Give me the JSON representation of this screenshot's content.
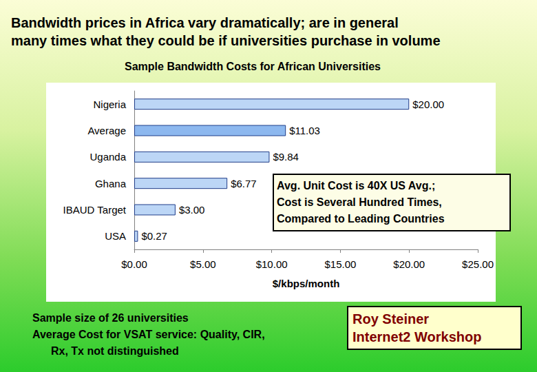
{
  "chart_data": {
    "type": "bar",
    "orientation": "horizontal",
    "title": "Sample Bandwidth Costs for African Universities",
    "x_label": "$/kbps/month",
    "categories": [
      "Nigeria",
      "Average",
      "Uganda",
      "Ghana",
      "IBAUD Target",
      "USA"
    ],
    "values": [
      20.0,
      11.03,
      9.84,
      6.77,
      3.0,
      0.27
    ],
    "value_labels": [
      "$20.00",
      "$11.03",
      "$9.84",
      "$6.77",
      "$3.00",
      "$0.27"
    ],
    "colors": [
      "#bcd6f6",
      "#8db8ef",
      "#bcd6f6",
      "#bcd6f6",
      "#bcd6f6",
      "#bcd6f6"
    ],
    "data_labels": true,
    "grid": false,
    "xlim": [
      0,
      25
    ],
    "xticks": [
      {
        "value": 0,
        "label": "$0.00"
      },
      {
        "value": 5,
        "label": "$5.00"
      },
      {
        "value": 10,
        "label": "$10.00"
      },
      {
        "value": 15,
        "label": "$15.00"
      },
      {
        "value": 20,
        "label": "$20.00"
      },
      {
        "value": 25,
        "label": "$25.00"
      }
    ],
    "annotation": [
      "Avg. Unit Cost is 40X US Avg.;",
      "Cost is Several Hundred Times,",
      "Compared to Leading Countries"
    ]
  },
  "slide": {
    "heading": [
      "Bandwidth prices in Africa vary dramatically; are in general",
      "many times what they could be if universities purchase in volume"
    ],
    "notes": [
      "Sample size of 26 universities",
      "Average Cost for VSAT service: Quality, CIR,",
      "Rx, Tx not distinguished"
    ],
    "credit": [
      "Roy Steiner",
      "Internet2 Workshop"
    ]
  }
}
